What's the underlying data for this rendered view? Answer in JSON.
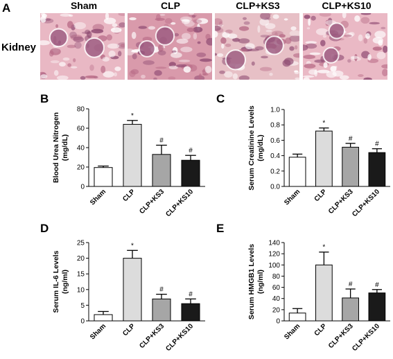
{
  "panel_a": {
    "letter": "A",
    "row_label": "Kidney",
    "columns": [
      "Sham",
      "CLP",
      "CLP+KS3",
      "CLP+KS10"
    ]
  },
  "chart_data": [
    {
      "panel": "B",
      "type": "bar",
      "ylabel": [
        "Blood Urea Nitrogen",
        "(mg/dL)"
      ],
      "categories": [
        "Sham",
        "CLP",
        "CLP+KS3",
        "CLP+KS10"
      ],
      "values": [
        19.5,
        64,
        33,
        27
      ],
      "errors": [
        1.5,
        4,
        9.5,
        5
      ],
      "annotations": [
        "",
        "*",
        "#",
        "#"
      ],
      "ylim": [
        0,
        80
      ],
      "yticks": [
        "0",
        "20",
        "40",
        "60",
        "80"
      ],
      "colors": [
        "#ffffff",
        "#dcdcdc",
        "#a6a6a6",
        "#1a1a1a"
      ]
    },
    {
      "panel": "C",
      "type": "bar",
      "ylabel": [
        "Serum Creatinine Levels",
        "(mg/dL)"
      ],
      "categories": [
        "Sham",
        "CLP",
        "CLP+KS3",
        "CLP+KS10"
      ],
      "values": [
        0.38,
        0.72,
        0.51,
        0.44
      ],
      "errors": [
        0.04,
        0.04,
        0.05,
        0.05
      ],
      "annotations": [
        "",
        "*",
        "#",
        "#"
      ],
      "ylim": [
        0,
        1.0
      ],
      "yticks": [
        "0.0",
        "0.2",
        "0.4",
        "0.6",
        "0.8",
        "1.0"
      ],
      "colors": [
        "#ffffff",
        "#dcdcdc",
        "#a6a6a6",
        "#1a1a1a"
      ]
    },
    {
      "panel": "D",
      "type": "bar",
      "ylabel": [
        "Serum IL-6 Levels",
        "(ng/ml)"
      ],
      "categories": [
        "Sham",
        "CLP",
        "CLP+KS3",
        "CLP+KS10"
      ],
      "values": [
        2,
        20,
        7,
        5.5
      ],
      "errors": [
        1,
        2.5,
        1.5,
        1.5
      ],
      "annotations": [
        "",
        "*",
        "#",
        "#"
      ],
      "ylim": [
        0,
        25
      ],
      "yticks": [
        "0",
        "5",
        "10",
        "15",
        "20",
        "25"
      ],
      "colors": [
        "#ffffff",
        "#dcdcdc",
        "#a6a6a6",
        "#1a1a1a"
      ]
    },
    {
      "panel": "E",
      "type": "bar",
      "ylabel": [
        "Serum HMGB1 Levels",
        "(ng/ml)"
      ],
      "categories": [
        "Sham",
        "CLP",
        "CLP+KS3",
        "CLP+KS10"
      ],
      "values": [
        14,
        100,
        41,
        50
      ],
      "errors": [
        8,
        23,
        16,
        6
      ],
      "annotations": [
        "",
        "*",
        "#",
        "#"
      ],
      "ylim": [
        0,
        140
      ],
      "yticks": [
        "0",
        "20",
        "40",
        "60",
        "80",
        "100",
        "120",
        "140"
      ],
      "colors": [
        "#ffffff",
        "#dcdcdc",
        "#a6a6a6",
        "#1a1a1a"
      ]
    }
  ]
}
